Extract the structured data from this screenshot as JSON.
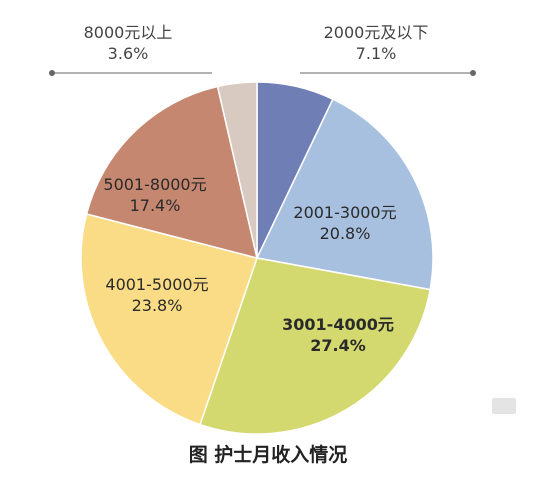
{
  "chart_data": {
    "type": "pie",
    "title": "图 护士月收入情况",
    "slices": [
      {
        "label": "2000元及以下",
        "value": 7.1,
        "pct_label": "7.1%",
        "color": "#6f7fb6"
      },
      {
        "label": "2001-3000元",
        "value": 20.8,
        "pct_label": "20.8%",
        "color": "#a8c0df"
      },
      {
        "label": "3001-4000元",
        "value": 27.4,
        "pct_label": "27.4%",
        "color": "#d3d96e"
      },
      {
        "label": "4001-5000元",
        "value": 23.8,
        "pct_label": "23.8%",
        "color": "#fadc86"
      },
      {
        "label": "5001-8000元",
        "value": 17.4,
        "pct_label": "17.4%",
        "color": "#c58770"
      },
      {
        "label": "8000元以上",
        "value": 3.6,
        "pct_label": "3.6%",
        "color": "#d8c9c1"
      }
    ],
    "legend": "none",
    "labels": "callout-and-inside"
  }
}
